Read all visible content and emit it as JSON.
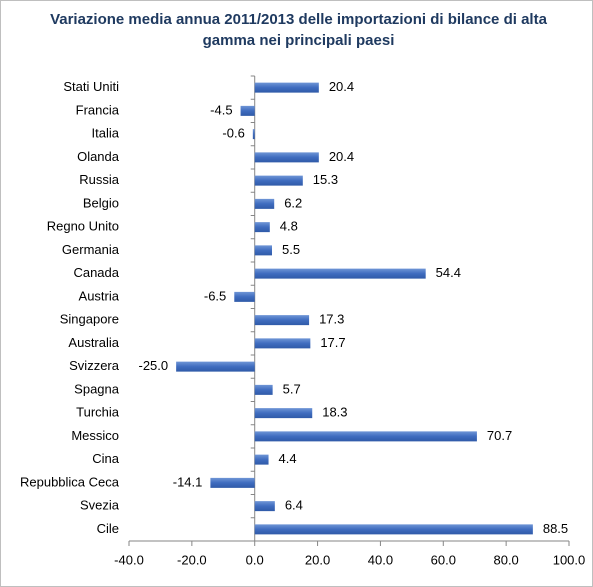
{
  "chart_data": {
    "type": "hbar",
    "title": "Variazione media annua 2011/2013 delle importazioni di bilance di alta gamma nei principali  paesi",
    "categories": [
      "Stati Uniti",
      "Francia",
      "Italia",
      "Olanda",
      "Russia",
      "Belgio",
      "Regno Unito",
      "Germania",
      "Canada",
      "Austria",
      "Singapore",
      "Australia",
      "Svizzera",
      "Spagna",
      "Turchia",
      "Messico",
      "Cina",
      "Repubblica Ceca",
      "Svezia",
      "Cile"
    ],
    "values": [
      20.4,
      -4.5,
      -0.6,
      20.4,
      15.3,
      6.2,
      4.8,
      5.5,
      54.4,
      -6.5,
      17.3,
      17.7,
      -25,
      5.7,
      18.3,
      70.7,
      4.4,
      -14.1,
      6.4,
      88.5
    ],
    "value_labels": [
      "20.4",
      "-4.5",
      "-0.6",
      "20.4",
      "15.3",
      "6.2",
      "4.8",
      "5.5",
      "54.4",
      "-6.5",
      "17.3",
      "17.7",
      "-25.0",
      "5.7",
      "18.3",
      "70.7",
      "4.4",
      "-14.1",
      "6.4",
      "88.5"
    ],
    "color": "#4472c4",
    "xlim": [
      -40,
      100
    ],
    "xticks": [
      {
        "value": -40,
        "label": "-40.0"
      },
      {
        "value": -20,
        "label": "-20.0"
      },
      {
        "value": 0,
        "label": "0.0"
      },
      {
        "value": 20,
        "label": "20.0"
      },
      {
        "value": 40,
        "label": "40.0"
      },
      {
        "value": 60,
        "label": "60.0"
      },
      {
        "value": 80,
        "label": "80.0"
      },
      {
        "value": 100,
        "label": "100.0"
      }
    ]
  }
}
